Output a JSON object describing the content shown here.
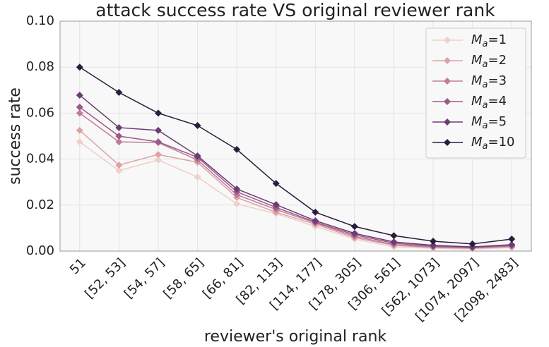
{
  "chart_data": {
    "type": "line",
    "title": "attack success rate VS original reviewer rank",
    "x_label": "reviewer's original rank",
    "y_label": "success rate",
    "categories": [
      "51",
      "[52, 53]",
      "[54, 57]",
      "[58, 65]",
      "[66, 81]",
      "[82, 113]",
      "[114, 177]",
      "[178, 305]",
      "[306, 561]",
      "[562, 1073]",
      "[1074, 2097]",
      "[2098, 2483]"
    ],
    "series": [
      {
        "name": "Ma=1",
        "color": "#efcfc8",
        "values": [
          0.0475,
          0.035,
          0.0396,
          0.0322,
          0.0205,
          0.0163,
          0.0107,
          0.0052,
          0.0018,
          0.0012,
          0.0009,
          0.0015
        ]
      },
      {
        "name": "Ma=2",
        "color": "#dba3a6",
        "values": [
          0.0525,
          0.0374,
          0.042,
          0.0386,
          0.0233,
          0.0169,
          0.0117,
          0.0058,
          0.0025,
          0.0015,
          0.0012,
          0.0018
        ]
      },
      {
        "name": "Ma=3",
        "color": "#c07c98",
        "values": [
          0.06,
          0.0475,
          0.0472,
          0.0396,
          0.0245,
          0.0181,
          0.0123,
          0.0064,
          0.0028,
          0.0018,
          0.0015,
          0.0021
        ]
      },
      {
        "name": "Ma=4",
        "color": "#9b5a8b",
        "values": [
          0.0626,
          0.05,
          0.0475,
          0.0408,
          0.0258,
          0.019,
          0.0126,
          0.0071,
          0.0034,
          0.0021,
          0.0015,
          0.0025
        ]
      },
      {
        "name": "Ma=5",
        "color": "#6b3d72",
        "values": [
          0.0678,
          0.0537,
          0.0525,
          0.0414,
          0.027,
          0.0202,
          0.0132,
          0.0077,
          0.004,
          0.0025,
          0.0018,
          0.0028
        ]
      },
      {
        "name": "Ma=10",
        "color": "#2b1d3d",
        "values": [
          0.08,
          0.069,
          0.06,
          0.0546,
          0.0442,
          0.0294,
          0.0169,
          0.0107,
          0.0067,
          0.0043,
          0.0031,
          0.0052
        ]
      }
    ],
    "ylim": [
      0,
      0.1
    ],
    "yticks": [
      {
        "value": 0,
        "label": "0.00"
      },
      {
        "value": 0.02,
        "label": "0.02"
      },
      {
        "value": 0.04,
        "label": "0.04"
      },
      {
        "value": 0.06,
        "label": "0.06"
      },
      {
        "value": 0.08,
        "label": "0.08"
      },
      {
        "value": 0.1,
        "label": "0.10"
      }
    ],
    "grid": true,
    "legend": "upper right"
  }
}
